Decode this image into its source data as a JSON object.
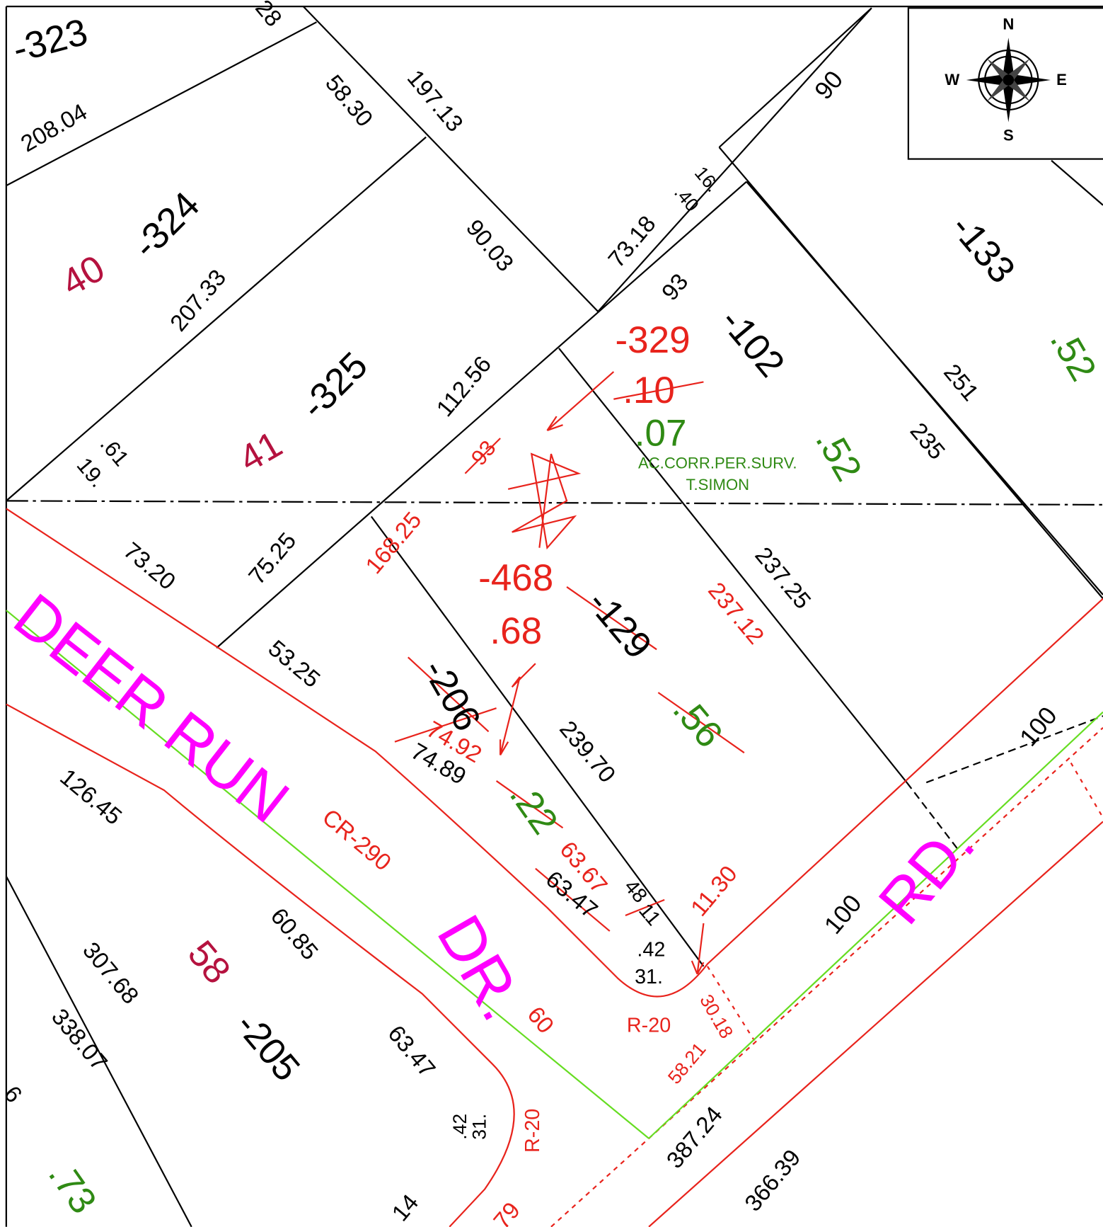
{
  "labels": [
    "-323",
    "28",
    "208.04",
    "58.30",
    "197.13",
    "90",
    "40",
    "-324",
    "207.33",
    "90.03",
    "73.18",
    "16.",
    ".40",
    "93",
    "-133",
    "-329",
    "-102",
    ".10",
    ".52",
    "-325",
    "112.56",
    "251",
    "41",
    ".07",
    "AC.CORR.PER.SURV.",
    "T.SIMON",
    ".52",
    "235",
    ".61",
    "19.",
    "93",
    "168.25",
    "73.20",
    "75.25",
    "237.25",
    "237.12",
    "-468",
    "-129",
    ".68",
    "53.25",
    "DEER RUN",
    "-206",
    ".56",
    "74.92",
    "74.89",
    "239.70",
    "100",
    "126.45",
    "CR-290",
    ".22",
    "63.67",
    "63.47",
    "RD.",
    "11.30",
    "100",
    ".42",
    "31.",
    "48",
    "11",
    "60.85",
    "307.68",
    "58",
    "DR.",
    "30.18",
    "R-20",
    "-205",
    "60",
    "338.07",
    "63.47",
    "58.21",
    ".42",
    "31.",
    "R-20",
    "387.24",
    "366.39",
    ".73",
    "14",
    "79",
    "6"
  ],
  "compass": {
    "n": "N",
    "e": "E",
    "s": "S",
    "w": "W"
  }
}
